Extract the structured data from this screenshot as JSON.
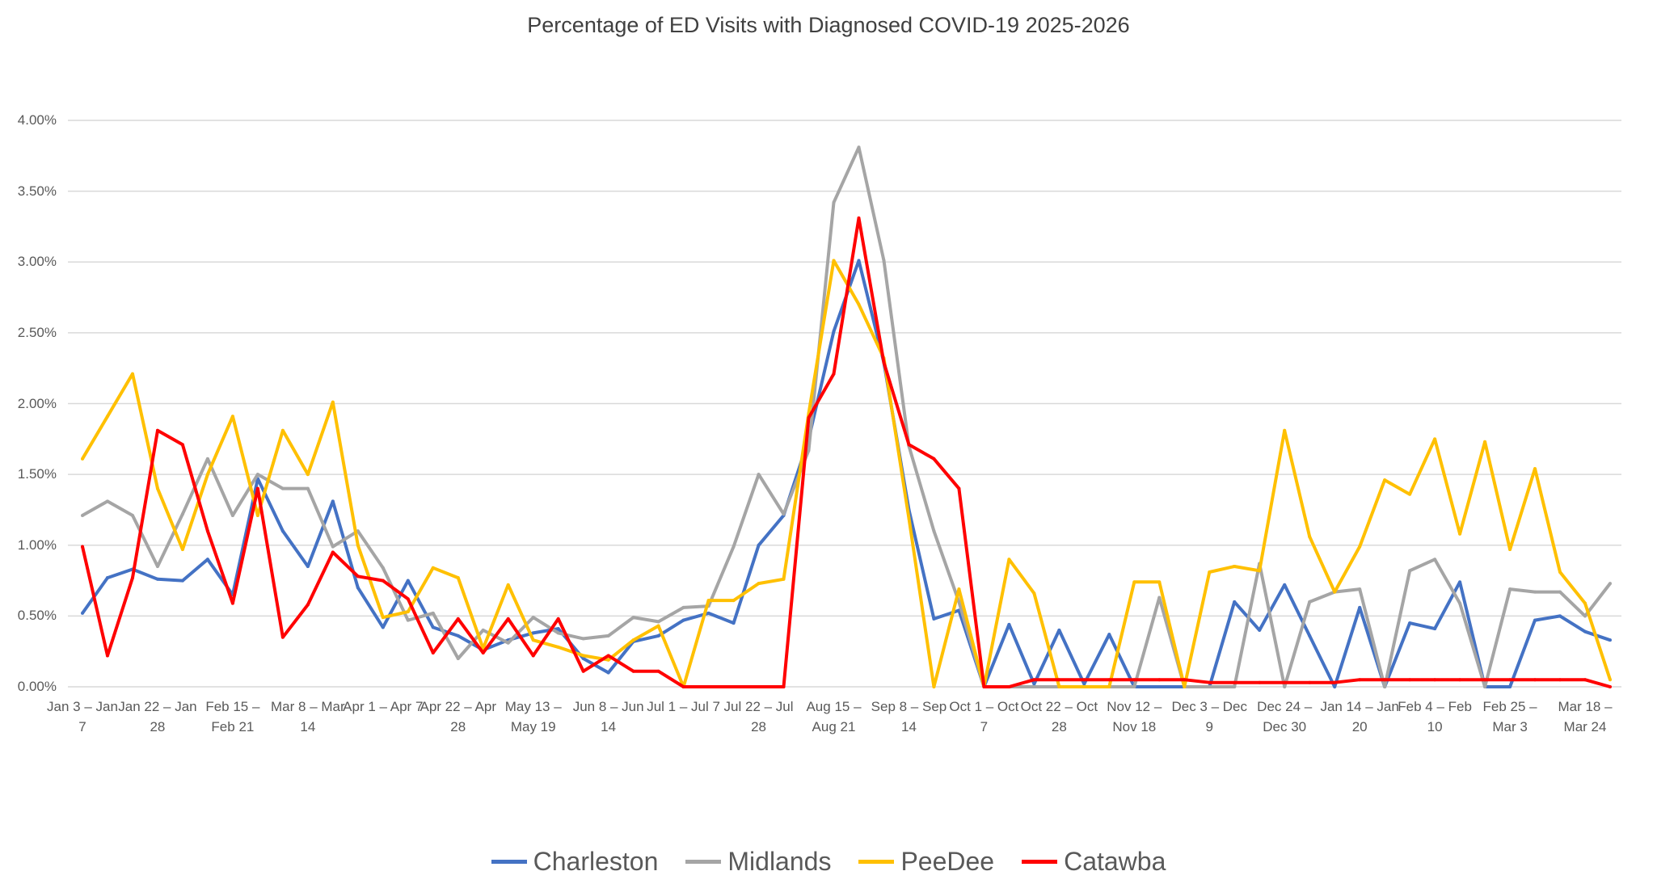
{
  "chart_data": {
    "type": "line",
    "title": "Percentage of ED Visits with Diagnosed COVID-19 2025-2026",
    "xlabel": "",
    "ylabel": "",
    "ylim": [
      0,
      4
    ],
    "y_ticks": [
      "0.00%",
      "0.50%",
      "1.00%",
      "1.50%",
      "2.00%",
      "2.50%",
      "3.00%",
      "3.50%",
      "4.00%"
    ],
    "grid": true,
    "legend_position": "bottom",
    "x_tick_labels": [
      "Jan 3 – Jan 7",
      "Jan 22 – Jan 28",
      "Feb 15 – Feb 21",
      "Mar 8 – Mar 14",
      "Apr 1 – Apr 7",
      "Apr 22 – Apr 28",
      "May 13 – May 19",
      "Jun 8 – Jun 14",
      "Jul 1 – Jul 7",
      "Jul 22 – Jul 28",
      "Aug 15 – Aug 21",
      "Sep 8 – Sep 14",
      "Oct 1 – Oct 7",
      "Oct 22 – Oct 28",
      "Nov 12 – Nov 18",
      "Dec 3 – Dec 9",
      "Dec 24 – Dec 30",
      "Jan 14 – Jan 20",
      "Feb 4 – Feb 10",
      "Feb 25 – Mar 3",
      "Mar 18 – Mar 24"
    ],
    "series": [
      {
        "name": "Charleston",
        "color": "#4472C4",
        "values": [
          0.52,
          0.77,
          0.83,
          0.76,
          0.75,
          0.9,
          0.65,
          1.47,
          1.1,
          0.85,
          1.31,
          0.7,
          0.42,
          0.75,
          0.42,
          0.36,
          0.26,
          0.33,
          0.38,
          0.41,
          0.2,
          0.1,
          0.32,
          0.36,
          0.47,
          0.52,
          0.45,
          1.0,
          1.21,
          1.75,
          2.51,
          3.01,
          2.29,
          1.25,
          0.48,
          0.54,
          0.0,
          0.44,
          0.02,
          0.4,
          0.02,
          0.37,
          0.0,
          0.0,
          0.0,
          0.0,
          0.6,
          0.4,
          0.72,
          0.36,
          0.0,
          0.56,
          0.0,
          0.45,
          0.41,
          0.74,
          0.0,
          0.0,
          0.47,
          0.5,
          0.39,
          0.33
        ]
      },
      {
        "name": "Midlands",
        "color": "#A5A5A5",
        "values": [
          1.21,
          1.31,
          1.21,
          0.85,
          1.22,
          1.61,
          1.21,
          1.5,
          1.4,
          1.4,
          0.99,
          1.1,
          0.84,
          0.47,
          0.52,
          0.2,
          0.4,
          0.31,
          0.49,
          0.38,
          0.34,
          0.36,
          0.49,
          0.46,
          0.56,
          0.57,
          0.99,
          1.5,
          1.22,
          1.67,
          3.42,
          3.81,
          3.01,
          1.7,
          1.1,
          0.6,
          0.0,
          0.0,
          0.0,
          0.0,
          0.0,
          0.0,
          0.0,
          0.63,
          0.0,
          0.0,
          0.0,
          0.87,
          0.0,
          0.6,
          0.67,
          0.69,
          0.0,
          0.82,
          0.9,
          0.59,
          0.0,
          0.69,
          0.67,
          0.67,
          0.5,
          0.73
        ]
      },
      {
        "name": "PeeDee",
        "color": "#FFC000",
        "values": [
          1.61,
          1.91,
          2.21,
          1.4,
          0.97,
          1.5,
          1.91,
          1.21,
          1.81,
          1.5,
          2.01,
          1.0,
          0.49,
          0.53,
          0.84,
          0.77,
          0.27,
          0.72,
          0.33,
          0.28,
          0.22,
          0.19,
          0.33,
          0.43,
          0.0,
          0.61,
          0.61,
          0.73,
          0.76,
          1.93,
          3.01,
          2.7,
          2.32,
          1.19,
          0.0,
          0.69,
          0.0,
          0.9,
          0.66,
          0.0,
          0.0,
          0.0,
          0.74,
          0.74,
          0.0,
          0.81,
          0.85,
          0.82,
          1.81,
          1.06,
          0.67,
          0.99,
          1.46,
          1.36,
          1.75,
          1.08,
          1.73,
          0.97,
          1.54,
          0.81,
          0.59,
          0.05
        ]
      },
      {
        "name": "Catawba",
        "color": "#FF0000",
        "values": [
          0.99,
          0.22,
          0.77,
          1.81,
          1.71,
          1.1,
          0.59,
          1.4,
          0.35,
          0.58,
          0.95,
          0.78,
          0.75,
          0.62,
          0.24,
          0.48,
          0.24,
          0.48,
          0.22,
          0.48,
          0.11,
          0.22,
          0.11,
          0.11,
          0.0,
          0.0,
          0.0,
          0.0,
          0.0,
          1.9,
          2.21,
          3.31,
          2.29,
          1.71,
          1.61,
          1.4,
          0.0,
          0.0,
          0.05,
          0.05,
          0.05,
          0.05,
          0.05,
          0.05,
          0.05,
          0.03,
          0.03,
          0.03,
          0.03,
          0.03,
          0.03,
          0.05,
          0.05,
          0.05,
          0.05,
          0.05,
          0.05,
          0.05,
          0.05,
          0.05,
          0.05,
          0.0
        ]
      }
    ]
  }
}
